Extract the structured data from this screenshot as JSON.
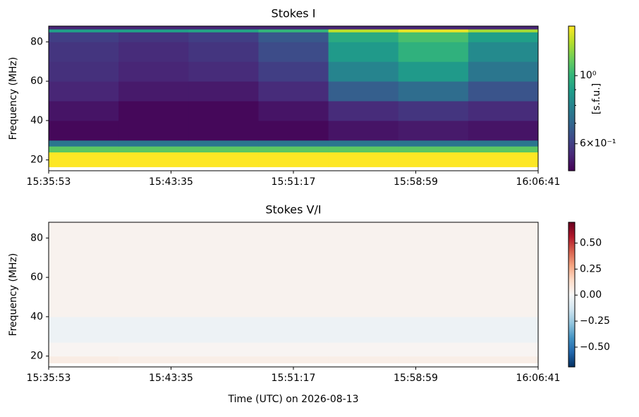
{
  "chart_data": [
    {
      "type": "heatmap",
      "title": "Stokes I",
      "ylabel": "Frequency (MHz)",
      "xlim": [
        "15:35:53",
        "16:06:41"
      ],
      "xticks": [
        "15:35:53",
        "15:43:35",
        "15:51:17",
        "15:58:59",
        "16:06:41"
      ],
      "ylim": [
        14.5,
        88
      ],
      "yticks": [
        20,
        40,
        60,
        80
      ],
      "time_edges": [
        "15:35:53",
        "15:40:17",
        "15:44:41",
        "15:49:05",
        "15:53:29",
        "15:57:53",
        "16:02:17",
        "16:06:41"
      ],
      "freq_edges": [
        14.5,
        16.5,
        24,
        27,
        30,
        40,
        50,
        60,
        70,
        80,
        85,
        86.5,
        88
      ],
      "z": [
        [
          null,
          null,
          null,
          null,
          null,
          null,
          null
        ],
        [
          1.45,
          1.45,
          1.45,
          1.45,
          1.45,
          1.45,
          1.45
        ],
        [
          1.1,
          1.1,
          1.1,
          1.1,
          1.1,
          1.1,
          1.1
        ],
        [
          0.75,
          0.75,
          0.75,
          0.75,
          0.75,
          0.75,
          0.75
        ],
        [
          0.5,
          0.5,
          0.5,
          0.5,
          0.52,
          0.53,
          0.52
        ],
        [
          0.52,
          0.5,
          0.5,
          0.52,
          0.56,
          0.58,
          0.56
        ],
        [
          0.55,
          0.53,
          0.53,
          0.56,
          0.68,
          0.72,
          0.65
        ],
        [
          0.57,
          0.55,
          0.56,
          0.6,
          0.8,
          0.88,
          0.75
        ],
        [
          0.58,
          0.56,
          0.58,
          0.63,
          0.88,
          0.98,
          0.82
        ],
        [
          0.6,
          0.58,
          0.6,
          0.66,
          0.95,
          1.05,
          0.9
        ],
        [
          0.9,
          0.9,
          0.92,
          1.0,
          1.3,
          1.4,
          1.25
        ],
        [
          0.55,
          0.55,
          0.55,
          0.55,
          0.55,
          0.55,
          0.55
        ]
      ],
      "colormap": "viridis",
      "clim": [
        0.49,
        1.45
      ],
      "cbar_scale": "log",
      "cbar_ticks": [
        {
          "value": 1,
          "label": "10⁰"
        },
        {
          "value": 0.6,
          "label": "6×10⁻¹"
        }
      ],
      "cbar_minor_ticks": [
        0.7,
        0.8,
        0.9
      ],
      "cbar_label": "[s.f.u.]"
    },
    {
      "type": "heatmap",
      "title": "Stokes V/I",
      "ylabel": "Frequency (MHz)",
      "xlabel": "Time (UTC) on 2026-08-13",
      "xlim": [
        "15:35:53",
        "16:06:41"
      ],
      "xticks": [
        "15:35:53",
        "15:43:35",
        "15:51:17",
        "15:58:59",
        "16:06:41"
      ],
      "ylim": [
        14.5,
        88
      ],
      "yticks": [
        20,
        40,
        60,
        80
      ],
      "time_edges": [
        "15:35:53",
        "15:40:17",
        "15:44:41",
        "15:49:05",
        "15:53:29",
        "15:57:53",
        "16:02:17",
        "16:06:41"
      ],
      "freq_edges": [
        14.5,
        16.5,
        20,
        27,
        40,
        88
      ],
      "z": [
        [
          null,
          null,
          null,
          null,
          null,
          null,
          null
        ],
        [
          0.06,
          0.05,
          0.05,
          0.05,
          0.05,
          0.05,
          0.05
        ],
        [
          0.02,
          0.02,
          0.02,
          0.02,
          0.02,
          0.02,
          0.02
        ],
        [
          -0.03,
          -0.03,
          -0.03,
          -0.03,
          -0.03,
          -0.03,
          -0.03
        ],
        [
          0.03,
          0.03,
          0.03,
          0.03,
          0.03,
          0.03,
          0.03
        ]
      ],
      "colormap": "RdBu_r",
      "clim": [
        -0.69,
        0.7
      ],
      "cbar_scale": "linear",
      "cbar_ticks": [
        {
          "value": 0.5,
          "label": "0.50"
        },
        {
          "value": 0.25,
          "label": "0.25"
        },
        {
          "value": 0,
          "label": "0.00"
        },
        {
          "value": -0.25,
          "label": "−0.25"
        },
        {
          "value": -0.5,
          "label": "−0.50"
        }
      ]
    }
  ]
}
